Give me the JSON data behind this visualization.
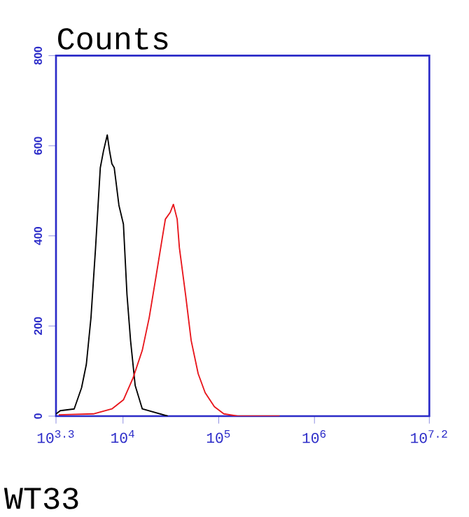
{
  "chart_data": {
    "type": "line",
    "title": "Counts",
    "xlabel": "WT33",
    "log": "x",
    "xlim": [
      1995.26,
      15848932
    ],
    "ylim": [
      0,
      800
    ],
    "xticks": [
      {
        "value": 1995.26,
        "label": "10$^{3.3}$"
      },
      {
        "value": 10000,
        "label": "10$^{4}$"
      },
      {
        "value": 100000,
        "label": "10$^{5}$"
      },
      {
        "value": 1000000,
        "label": "10$^{6}$"
      },
      {
        "value": 15848932,
        "label": "10$^{7.2}$"
      }
    ],
    "yticks": [
      0,
      200,
      400,
      600,
      800
    ],
    "grid": false,
    "marker": "none",
    "line_style": "solid",
    "series": [
      {
        "color": "#000000",
        "x": [
          2000,
          2210,
          3090,
          3690,
          4140,
          4630,
          5170,
          5790,
          6260,
          6850,
          7230,
          7650,
          8100,
          9060,
          10100,
          11000,
          12000,
          13400,
          15900,
          29400
        ],
        "values": [
          5,
          12,
          16,
          63,
          115,
          219,
          374,
          551,
          589,
          624,
          589,
          560,
          551,
          468,
          426,
          270,
          167,
          68,
          16,
          0
        ]
      },
      {
        "color": "#e8161c",
        "x": [
          2130,
          4900,
          7650,
          10100,
          12700,
          15900,
          18800,
          22200,
          25700,
          27700,
          31100,
          33600,
          36800,
          38800,
          45000,
          51500,
          61000,
          72100,
          90000,
          113000,
          158000,
          433000
        ],
        "values": [
          3,
          5,
          16,
          36,
          84,
          146,
          219,
          312,
          395,
          437,
          452,
          470,
          437,
          374,
          270,
          168,
          94,
          52,
          21,
          5,
          0,
          0
        ]
      }
    ]
  }
}
